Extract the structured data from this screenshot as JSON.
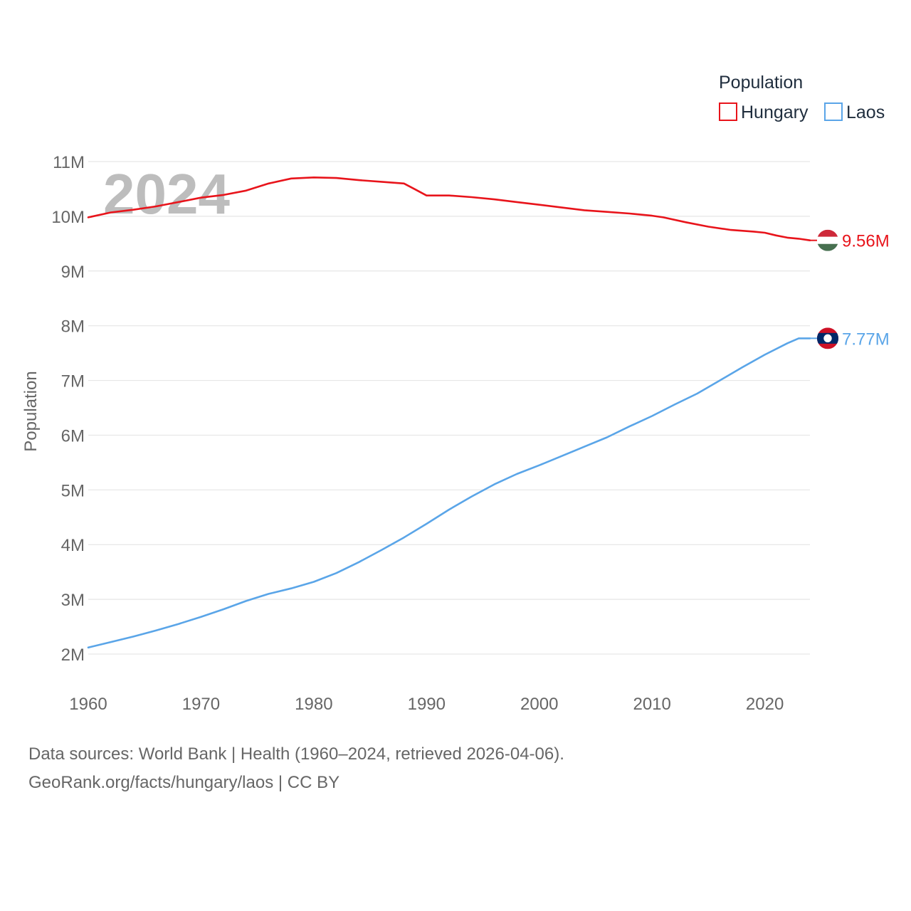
{
  "chart_data": {
    "type": "line",
    "title": "Population",
    "xlabel": "",
    "ylabel": "Population",
    "xlim": [
      1960,
      2024
    ],
    "ylim": [
      2000000,
      11000000
    ],
    "x_ticks": [
      1960,
      1970,
      1980,
      1990,
      2000,
      2010,
      2020
    ],
    "x_tick_labels": [
      "1960",
      "1970",
      "1980",
      "1990",
      "2000",
      "2010",
      "2020"
    ],
    "y_ticks": [
      2000000,
      3000000,
      4000000,
      5000000,
      6000000,
      7000000,
      8000000,
      9000000,
      10000000,
      11000000
    ],
    "y_tick_labels": [
      "2M",
      "3M",
      "4M",
      "5M",
      "6M",
      "7M",
      "8M",
      "9M",
      "10M",
      "11M"
    ],
    "year_label": "2024",
    "legend": {
      "title": "Population",
      "position": "top-right"
    },
    "series": [
      {
        "name": "Hungary",
        "color": "#e8141b",
        "end_label": "9.56M",
        "flag_icon": "hungary-flag-icon",
        "flag_colors": [
          "#ce2939",
          "#ffffff",
          "#477050"
        ],
        "x": [
          1960,
          1962,
          1964,
          1966,
          1968,
          1970,
          1972,
          1974,
          1976,
          1978,
          1980,
          1982,
          1984,
          1986,
          1988,
          1989,
          1990,
          1992,
          1994,
          1996,
          1998,
          2000,
          2002,
          2004,
          2006,
          2008,
          2010,
          2011,
          2013,
          2015,
          2017,
          2019,
          2020,
          2021,
          2022,
          2023,
          2024
        ],
        "values": [
          9980000,
          10070000,
          10120000,
          10180000,
          10260000,
          10340000,
          10390000,
          10470000,
          10600000,
          10690000,
          10710000,
          10700000,
          10660000,
          10630000,
          10600000,
          10490000,
          10380000,
          10380000,
          10350000,
          10310000,
          10260000,
          10210000,
          10160000,
          10110000,
          10080000,
          10050000,
          10010000,
          9980000,
          9890000,
          9810000,
          9750000,
          9720000,
          9700000,
          9650000,
          9610000,
          9590000,
          9560000
        ]
      },
      {
        "name": "Laos",
        "color": "#5aa5e8",
        "end_label": "7.77M",
        "flag_icon": "laos-flag-icon",
        "flag_colors": [
          "#ce1126",
          "#002868",
          "#ffffff"
        ],
        "x": [
          1960,
          1962,
          1964,
          1966,
          1968,
          1970,
          1972,
          1974,
          1976,
          1978,
          1980,
          1982,
          1984,
          1986,
          1988,
          1990,
          1992,
          1994,
          1996,
          1998,
          2000,
          2002,
          2004,
          2006,
          2008,
          2010,
          2012,
          2014,
          2016,
          2018,
          2020,
          2022,
          2023,
          2024
        ],
        "values": [
          2120000,
          2220000,
          2320000,
          2430000,
          2550000,
          2680000,
          2820000,
          2970000,
          3100000,
          3200000,
          3320000,
          3480000,
          3680000,
          3900000,
          4130000,
          4380000,
          4640000,
          4880000,
          5100000,
          5290000,
          5450000,
          5620000,
          5790000,
          5960000,
          6160000,
          6350000,
          6560000,
          6760000,
          7000000,
          7240000,
          7470000,
          7680000,
          7770000,
          7770000
        ]
      }
    ]
  },
  "footer": {
    "sources": "Data sources: World Bank | Health (1960–2024, retrieved 2026-04-06).",
    "attribution": "GeoRank.org/facts/hungary/laos | CC BY"
  }
}
